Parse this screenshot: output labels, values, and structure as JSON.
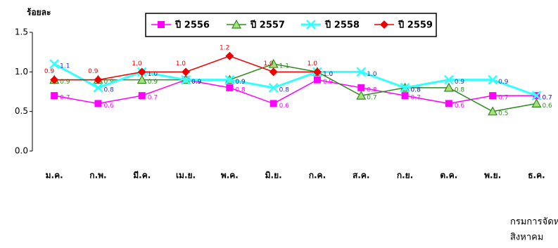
{
  "chart_data": {
    "type": "line",
    "y_label": "ร้อยละ",
    "categories": [
      "ม.ค.",
      "ก.พ.",
      "มี.ค.",
      "เม.ย.",
      "พ.ค.",
      "มิ.ย.",
      "ก.ค.",
      "ส.ค.",
      "ก.ย.",
      "ต.ค.",
      "พ.ย.",
      "ธ.ค."
    ],
    "series": [
      {
        "name": "ปี 2556",
        "color": "#ff00ff",
        "label_color": "#ff00ff",
        "marker": "square",
        "values": [
          0.7,
          0.6,
          0.7,
          0.9,
          0.8,
          0.6,
          0.9,
          0.8,
          0.7,
          0.6,
          0.7,
          0.7
        ],
        "value_labels": [
          "0.7",
          "0.6",
          "0.7",
          "0.9",
          "0.8",
          "0.6",
          "0.9",
          "0.8",
          "0.7",
          "0.6",
          "0.7",
          "0.7"
        ]
      },
      {
        "name": "ปี 2557",
        "color": "#2e8b20",
        "label_color": "#2e8b20",
        "marker": "triangle",
        "values": [
          0.9,
          0.9,
          0.9,
          0.9,
          0.9,
          1.1,
          1,
          0.7,
          0.8,
          0.8,
          0.5,
          0.6
        ],
        "value_labels": [
          "0.9",
          "0.9",
          "0.9",
          "0.9",
          "0.9",
          "1.1",
          "1.0",
          "0.7",
          "0.8",
          "0.8",
          "0.5",
          "0.6"
        ]
      },
      {
        "name": "ปี 2558",
        "color": "#33ffff",
        "label_color": "#2233bb",
        "marker": "x",
        "values": [
          1.1,
          0.8,
          1,
          0.9,
          0.9,
          0.8,
          1,
          1,
          0.8,
          0.9,
          0.9,
          0.7
        ],
        "value_labels": [
          "1.1",
          "0.8",
          "1.0",
          "0.9",
          "0.9",
          "0.8",
          "1.0",
          "1.0",
          "0.8",
          "0.9",
          "0.9",
          "0.7"
        ]
      },
      {
        "name": "ปี 2559",
        "color": "#ee0000",
        "label_color": "#ee0000",
        "marker": "diamond",
        "values": [
          0.9,
          0.9,
          1,
          1,
          1.2,
          1,
          1,
          null,
          null,
          null,
          null,
          null
        ],
        "value_labels": [
          "0.9",
          "0.9",
          "1.0",
          "1.0",
          "1.2",
          "1.0",
          "1.0",
          null,
          null,
          null,
          null,
          null
        ]
      }
    ],
    "ylim": [
      0,
      1.5
    ],
    "yticks": [
      {
        "value": 0,
        "label": "0.0"
      },
      0.5,
      {
        "value": 1,
        "label": "1.0"
      },
      1.5
    ],
    "footer": [
      "กรมการจัดห",
      "สิงหาคม"
    ]
  }
}
